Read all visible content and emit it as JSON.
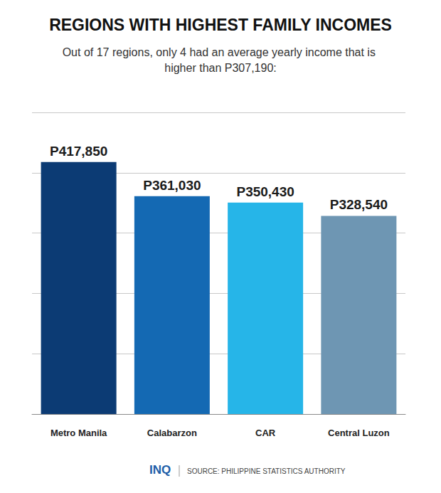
{
  "chart_data": {
    "type": "bar",
    "title": "REGIONS WITH HIGHEST FAMILY INCOMES",
    "subtitle": "Out of 17 regions, only 4 had an average yearly income that is higher than P307,190:",
    "categories": [
      "Metro Manila",
      "Calabarzon",
      "CAR",
      "Central Luzon"
    ],
    "values": [
      417850,
      361030,
      350430,
      328540
    ],
    "value_labels": [
      "P417,850",
      "P361,030",
      "P350,430",
      "P328,540"
    ],
    "colors": [
      "#0c3b74",
      "#1469b3",
      "#26b5e8",
      "#6e96b3"
    ],
    "ylim": [
      0,
      500000
    ],
    "yticks": [
      0,
      100000,
      200000,
      300000,
      400000,
      500000
    ],
    "grid": true,
    "data_labels": true,
    "tick_labels": "x",
    "footer": [
      "INQ",
      "SOURCE: PHILIPPINE STATISTICS AUTHORITY"
    ]
  }
}
